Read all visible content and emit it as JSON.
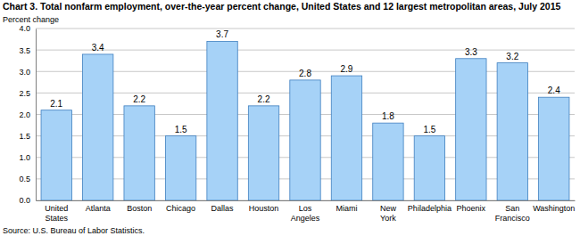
{
  "chart_data": {
    "type": "bar",
    "title": "Chart 3. Total nonfarm employment, over-the-year percent change, United States and 12 largest metropolitan areas, July 2015",
    "y_label": "Percent change",
    "source": "Source: U.S. Bureau of Labor Statistics.",
    "categories": [
      "United States",
      "Atlanta",
      "Boston",
      "Chicago",
      "Dallas",
      "Houston",
      "Los Angeles",
      "Miami",
      "New York",
      "Philadelphia",
      "Phoenix",
      "San Francisco",
      "Washington"
    ],
    "values": [
      2.1,
      3.4,
      2.2,
      1.5,
      3.7,
      2.2,
      2.8,
      2.9,
      1.8,
      1.5,
      3.3,
      3.2,
      2.4
    ],
    "color": "#a6d2f7",
    "ylim": [
      0,
      4
    ],
    "yticks": [
      {
        "value": 0,
        "label": "0.0"
      },
      0.5,
      {
        "value": 1,
        "label": "1.0"
      },
      1.5,
      {
        "value": 2,
        "label": "2.0"
      },
      2.5,
      {
        "value": 3,
        "label": "3.0"
      },
      3.5,
      {
        "value": 4,
        "label": "4.0"
      }
    ],
    "grid": true,
    "data_labels": true
  }
}
